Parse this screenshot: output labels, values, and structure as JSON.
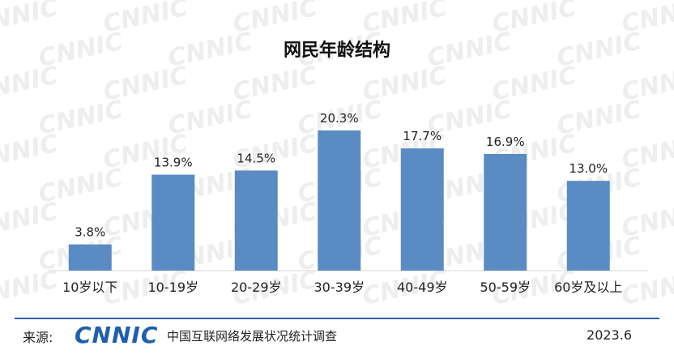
{
  "chart_data": {
    "type": "bar",
    "title": "网民年龄结构",
    "categories": [
      "10岁以下",
      "10-19岁",
      "20-29岁",
      "30-39岁",
      "40-49岁",
      "50-59岁",
      "60岁及以上"
    ],
    "values": [
      3.8,
      13.9,
      14.5,
      20.3,
      17.7,
      16.9,
      13.0
    ],
    "data_labels": [
      "3.8%",
      "13.9%",
      "14.5%",
      "20.3%",
      "17.7%",
      "16.9%",
      "13.0%"
    ],
    "unit": "%",
    "ylim": [
      0,
      20.3
    ],
    "grid": false,
    "bar_color": "#5b8bc3"
  },
  "footer": {
    "source_label": "来源:",
    "logo_text": "CNNIC",
    "source_name": "中国互联网络发展状况统计调查",
    "date": "2023.6"
  },
  "watermark_text": "CNNIC",
  "colors": {
    "brand": "#1f5fae",
    "rule": "#2e5fa8"
  }
}
